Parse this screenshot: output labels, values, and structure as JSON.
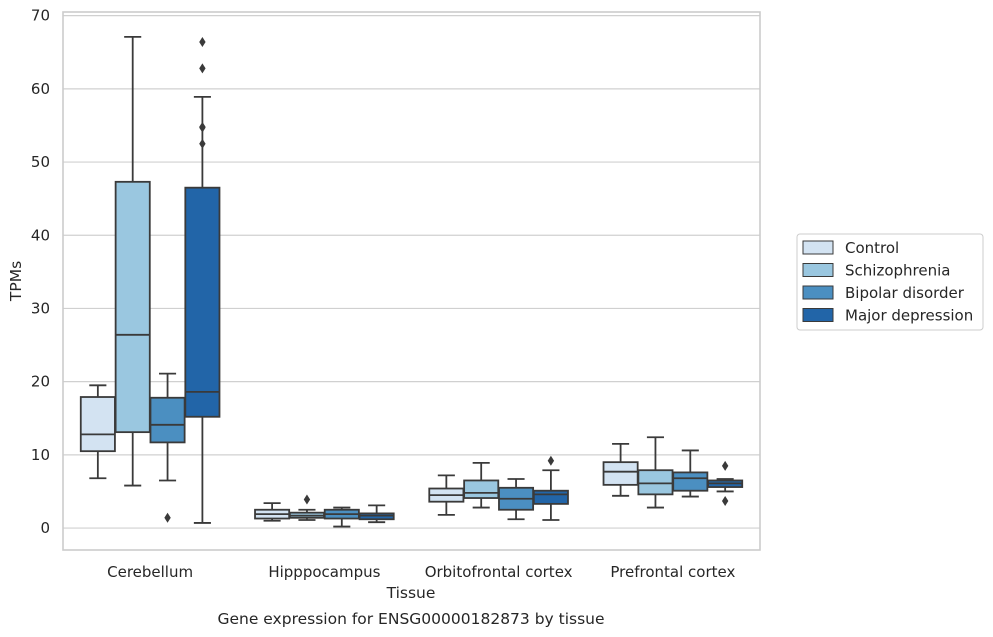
{
  "chart_data": {
    "type": "boxplot",
    "title": "",
    "caption": "Gene expression for ENSG00000182873 by tissue",
    "xlabel": "Tissue",
    "ylabel": "TPMs",
    "ylim": [
      -3,
      70.5
    ],
    "yticks": [
      0,
      10,
      20,
      30,
      40,
      50,
      60,
      70
    ],
    "grid": "horizontal",
    "legend_position": "right",
    "categories": [
      "Cerebellum",
      "Hipppocampus",
      "Orbitofrontal cortex",
      "Prefrontal cortex"
    ],
    "series": [
      {
        "name": "Control",
        "color": "#d3e3f2",
        "boxes": [
          {
            "whislo": 6.8,
            "q1": 10.5,
            "med": 12.8,
            "q3": 17.9,
            "whishi": 19.5,
            "fliers": []
          },
          {
            "whislo": 1.0,
            "q1": 1.3,
            "med": 1.9,
            "q3": 2.5,
            "whishi": 3.4,
            "fliers": []
          },
          {
            "whislo": 1.8,
            "q1": 3.6,
            "med": 4.5,
            "q3": 5.4,
            "whishi": 7.2,
            "fliers": []
          },
          {
            "whislo": 4.4,
            "q1": 5.9,
            "med": 7.7,
            "q3": 9.0,
            "whishi": 11.5,
            "fliers": []
          }
        ]
      },
      {
        "name": "Schizophrenia",
        "color": "#9ac7e0",
        "boxes": [
          {
            "whislo": 5.8,
            "q1": 13.1,
            "med": 26.4,
            "q3": 47.3,
            "whishi": 67.1,
            "fliers": []
          },
          {
            "whislo": 1.1,
            "q1": 1.4,
            "med": 1.7,
            "q3": 2.1,
            "whishi": 2.5,
            "fliers": [
              3.9
            ]
          },
          {
            "whislo": 2.8,
            "q1": 4.1,
            "med": 4.8,
            "q3": 6.5,
            "whishi": 8.9,
            "fliers": []
          },
          {
            "whislo": 2.8,
            "q1": 4.6,
            "med": 6.1,
            "q3": 7.9,
            "whishi": 12.4,
            "fliers": []
          }
        ]
      },
      {
        "name": "Bipolar disorder",
        "color": "#4b8fc1",
        "boxes": [
          {
            "whislo": 6.5,
            "q1": 11.7,
            "med": 14.1,
            "q3": 17.8,
            "whishi": 21.1,
            "fliers": [
              1.4
            ]
          },
          {
            "whislo": 0.2,
            "q1": 1.3,
            "med": 1.9,
            "q3": 2.5,
            "whishi": 2.8,
            "fliers": []
          },
          {
            "whislo": 1.2,
            "q1": 2.5,
            "med": 4.0,
            "q3": 5.5,
            "whishi": 6.7,
            "fliers": []
          },
          {
            "whislo": 4.3,
            "q1": 5.1,
            "med": 6.8,
            "q3": 7.6,
            "whishi": 10.6,
            "fliers": []
          }
        ]
      },
      {
        "name": "Major depression",
        "color": "#2265a8",
        "boxes": [
          {
            "whislo": 0.7,
            "q1": 15.2,
            "med": 18.6,
            "q3": 46.5,
            "whishi": 58.9,
            "fliers": [
              54.7,
              52.5,
              62.8,
              66.4,
              54.8
            ]
          },
          {
            "whislo": 0.8,
            "q1": 1.2,
            "med": 1.7,
            "q3": 2.0,
            "whishi": 3.1,
            "fliers": []
          },
          {
            "whislo": 1.1,
            "q1": 3.3,
            "med": 4.6,
            "q3": 5.1,
            "whishi": 7.9,
            "fliers": [
              9.2
            ]
          },
          {
            "whislo": 5.0,
            "q1": 5.6,
            "med": 6.1,
            "q3": 6.5,
            "whishi": 6.7,
            "fliers": [
              8.5,
              3.7
            ]
          }
        ]
      }
    ]
  }
}
